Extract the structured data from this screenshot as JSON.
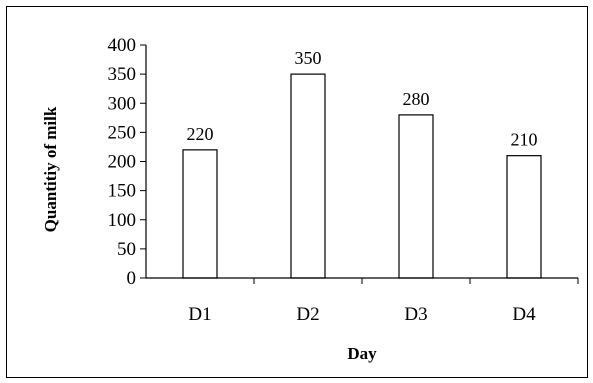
{
  "chart_data": {
    "type": "bar",
    "categories": [
      "D1",
      "D2",
      "D3",
      "D4"
    ],
    "values": [
      220,
      350,
      280,
      210
    ],
    "data_labels": [
      "220",
      "350",
      "280",
      "210"
    ],
    "title": "",
    "xlabel": "Day",
    "ylabel": "Quantitiy of  milk",
    "ylim": [
      0,
      400
    ],
    "yticks": [
      0,
      50,
      100,
      150,
      200,
      250,
      300,
      350,
      400
    ],
    "grid": false,
    "legend": "none",
    "bar_fill": "#ffffff",
    "bar_stroke": "#000000"
  }
}
